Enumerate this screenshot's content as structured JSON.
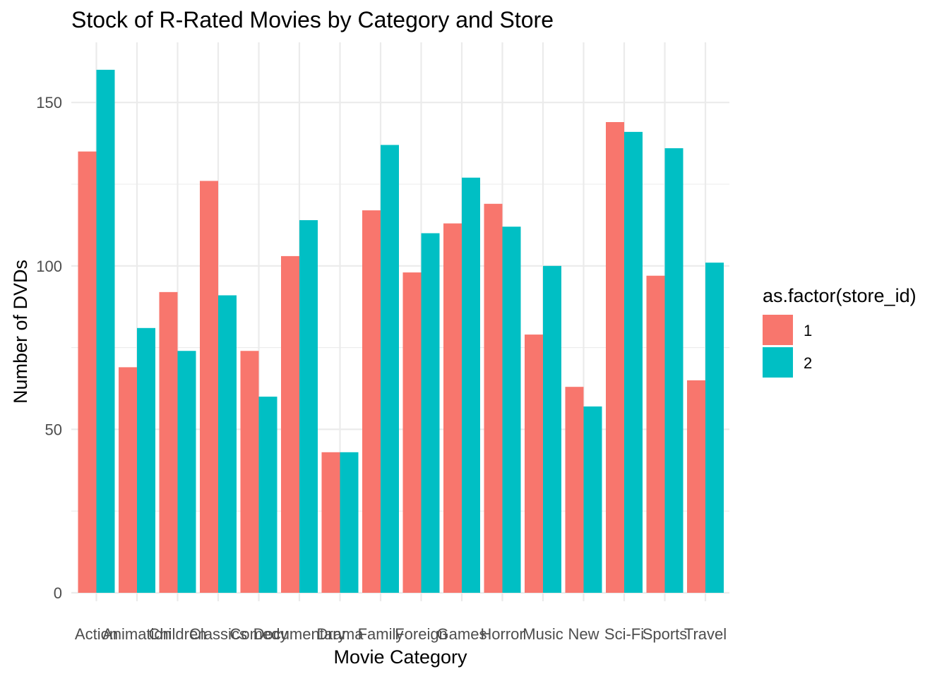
{
  "chart_data": {
    "type": "bar",
    "title": "Stock of R-Rated Movies by Category and Store",
    "xlabel": "Movie Category",
    "ylabel": "Number of DVDs",
    "ylim": [
      0,
      165
    ],
    "yticks": [
      0,
      50,
      100,
      150
    ],
    "grid": true,
    "legend_position": "right",
    "legend_title": "as.factor(store_id)",
    "categories": [
      "Action",
      "Animation",
      "Children",
      "Classics",
      "Comedy",
      "Documentary",
      "Drama",
      "Family",
      "Foreign",
      "Games",
      "Horror",
      "Music",
      "New",
      "Sci-Fi",
      "Sports",
      "Travel"
    ],
    "series": [
      {
        "name": "1",
        "color": "#F8766D",
        "values": [
          135,
          69,
          92,
          126,
          74,
          103,
          43,
          117,
          98,
          113,
          119,
          79,
          63,
          144,
          97,
          65
        ]
      },
      {
        "name": "2",
        "color": "#00BFC4",
        "values": [
          160,
          81,
          74,
          91,
          60,
          114,
          43,
          137,
          110,
          127,
          112,
          100,
          57,
          141,
          136,
          101
        ]
      }
    ]
  }
}
